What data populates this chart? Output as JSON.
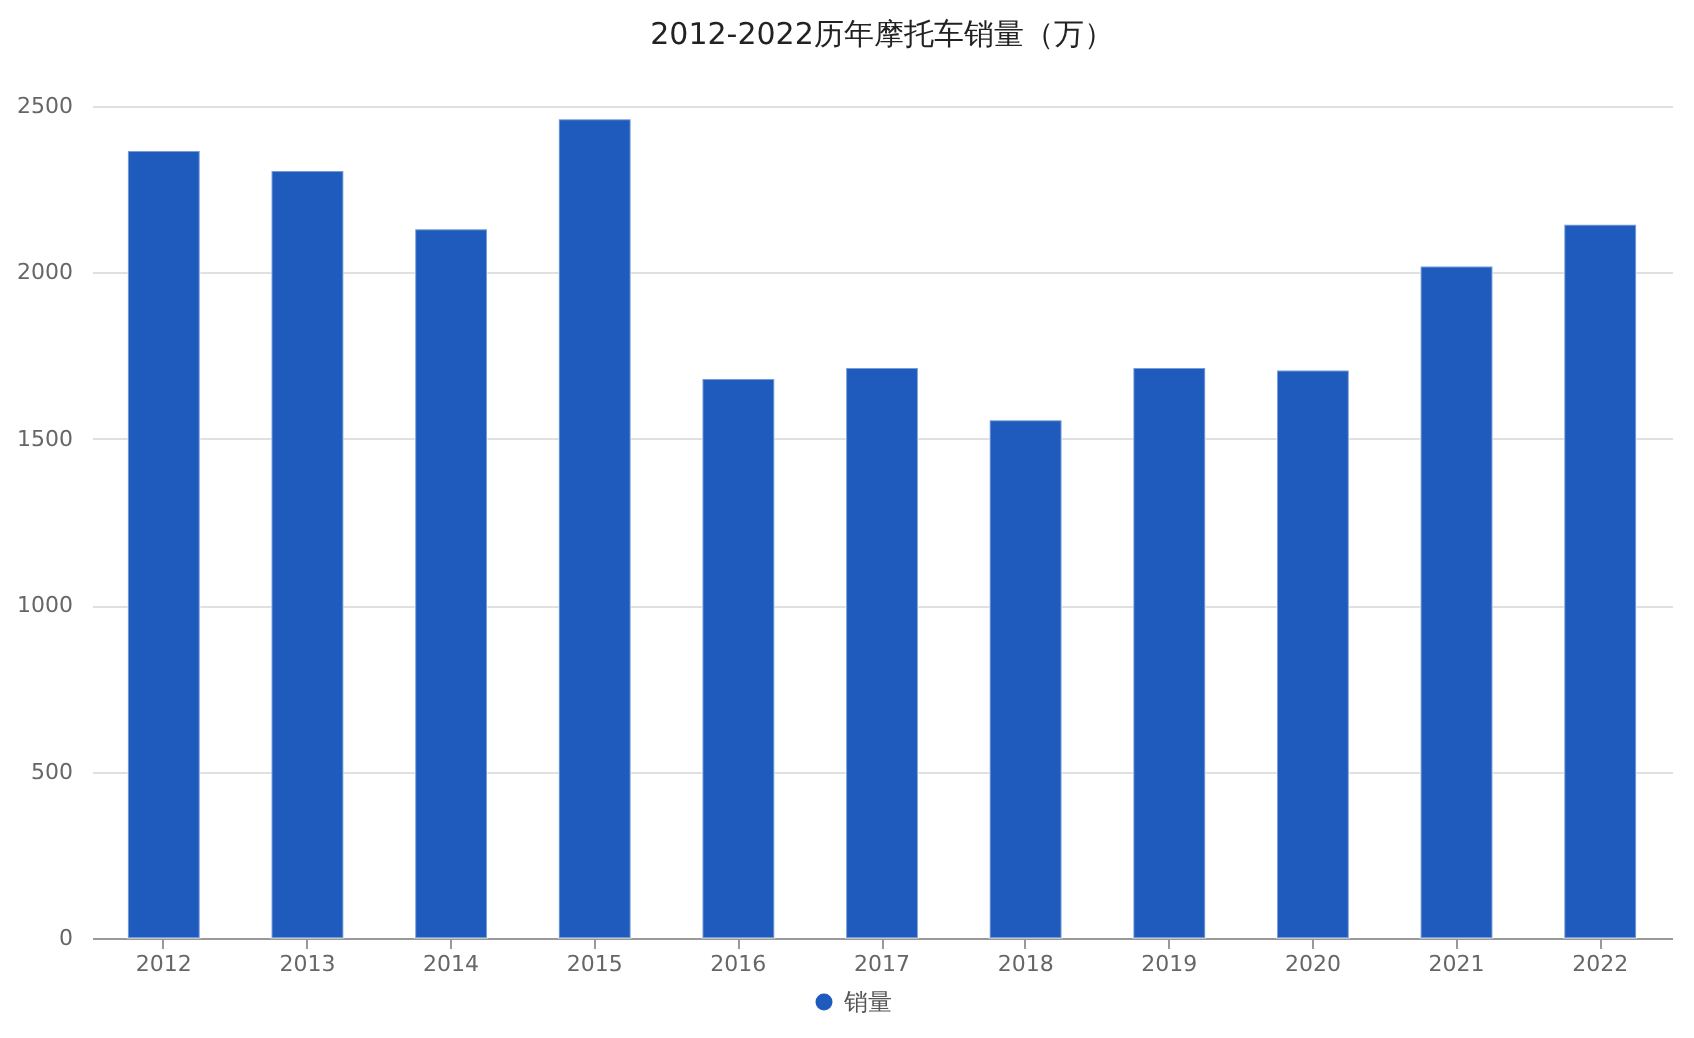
{
  "chart_data": {
    "type": "bar",
    "title": "2012-2022历年摩托车销量（万）",
    "categories": [
      "2012",
      "2013",
      "2014",
      "2015",
      "2016",
      "2017",
      "2018",
      "2019",
      "2020",
      "2021",
      "2022"
    ],
    "series": [
      {
        "name": "销量",
        "color": "#1f5bbd",
        "values": [
          2365,
          2305,
          2130,
          2460,
          1680,
          1713,
          1556,
          1713,
          1705,
          2018,
          2143
        ]
      }
    ],
    "ylim": [
      0,
      2500
    ],
    "yticks": [
      0,
      500,
      1000,
      1500,
      2000,
      2500
    ],
    "grid": "y",
    "legend": "bottom"
  }
}
